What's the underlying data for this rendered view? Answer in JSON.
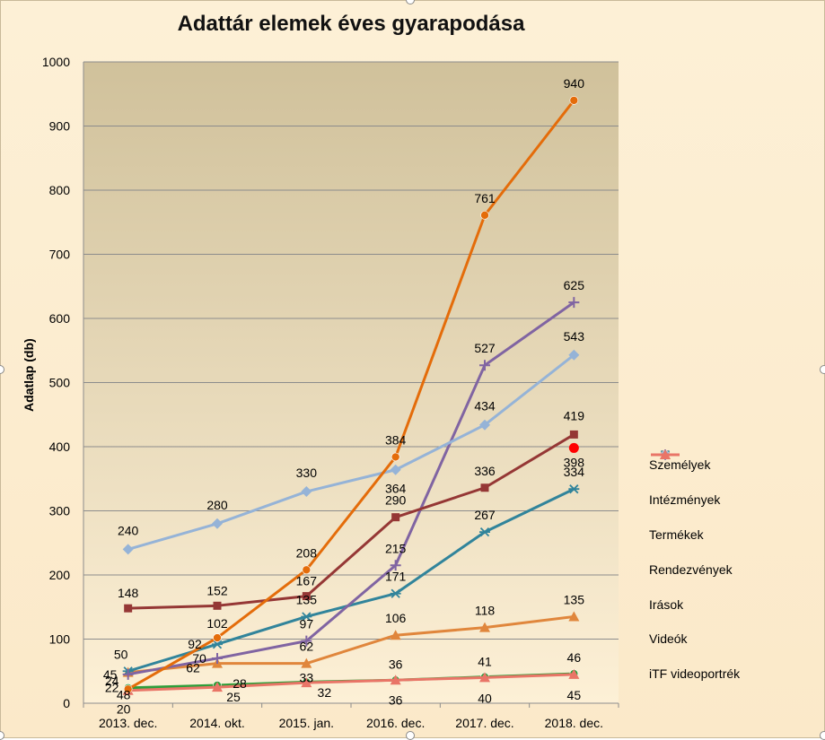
{
  "chart_data": {
    "type": "line",
    "title": "Adattár elemek éves gyarapodása",
    "xlabel": "",
    "ylabel": "Adatlap (db)",
    "ylim": [
      0,
      1000
    ],
    "yticks": [
      "0",
      "100",
      "200",
      "300",
      "400",
      "500",
      "600",
      "700",
      "800",
      "900",
      "1000"
    ],
    "grid": true,
    "legend_position": "right",
    "categories": [
      "2013. dec.",
      "2014. okt.",
      "2015. jan.",
      "2016. dec.",
      "2017. dec.",
      "2018. dec."
    ],
    "series": [
      {
        "name": "Személyek",
        "color": "#953735",
        "marker": "square",
        "values": [
          148,
          152,
          167,
          290,
          336,
          419
        ]
      },
      {
        "name": "Intézmények",
        "color": "#31849b",
        "marker": "star",
        "values": [
          50,
          92,
          135,
          171,
          267,
          334
        ]
      },
      {
        "name": "Termékek",
        "color": "#e0863c",
        "marker": "triangle",
        "values": [
          48,
          62,
          62,
          106,
          118,
          135
        ]
      },
      {
        "name": "Rendezvények",
        "color": "#e46c0a",
        "marker": "circle",
        "values": [
          22,
          102,
          208,
          384,
          761,
          940
        ]
      },
      {
        "name": "Irások",
        "color": "#8064a2",
        "marker": "plus",
        "values": [
          45,
          70,
          97,
          215,
          527,
          625
        ]
      },
      {
        "name": "Videók",
        "color": "#95b3d7",
        "marker": "diamond",
        "values": [
          240,
          280,
          330,
          364,
          434,
          543
        ]
      },
      {
        "name": "iTF videoportrék",
        "color": "#e97567",
        "marker": "triangle",
        "values": [
          20,
          25,
          32,
          36,
          40,
          45
        ]
      }
    ],
    "extra_series": [
      {
        "color": "#2e9e3a",
        "marker": "circle",
        "values": [
          24,
          28,
          33,
          36,
          41,
          46
        ]
      }
    ],
    "annotations": [
      {
        "x": "2018. dec.",
        "y": 398,
        "text": "398",
        "color": "#ff0000"
      }
    ]
  }
}
